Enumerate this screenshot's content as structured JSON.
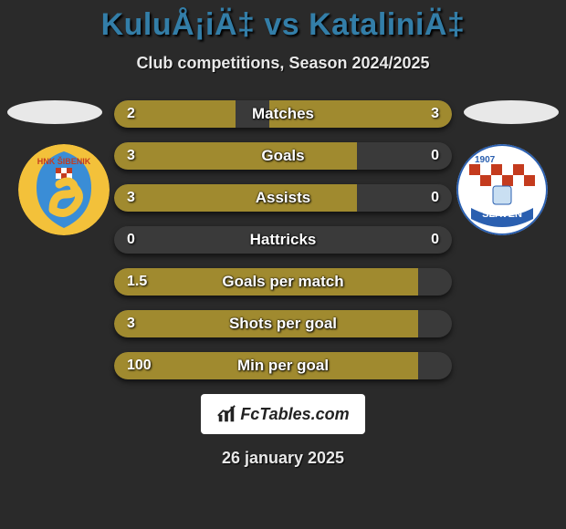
{
  "header": {
    "title": "KuluÅ¡iÄ‡ vs KataliniÄ‡",
    "title_color": "#337ea8",
    "subtitle": "Club competitions, Season 2024/2025"
  },
  "clubs": {
    "left": {
      "name": "HNK Šibenik",
      "badge_bg": "#f3c13a",
      "badge_text_color": "#1e5fa8"
    },
    "right": {
      "name": "Slaven",
      "badge_bg": "#ffffff",
      "badge_text_color": "#2a5fb0"
    }
  },
  "bars": {
    "track_color": "#3a3a3a",
    "left_fill_color": "#a08a2f",
    "right_fill_color": "#a08a2f",
    "rows": [
      {
        "label": "Matches",
        "left_val": "2",
        "right_val": "3",
        "left_pct": 36,
        "right_pct": 54
      },
      {
        "label": "Goals",
        "left_val": "3",
        "right_val": "0",
        "left_pct": 72,
        "right_pct": 0
      },
      {
        "label": "Assists",
        "left_val": "3",
        "right_val": "0",
        "left_pct": 72,
        "right_pct": 0
      },
      {
        "label": "Hattricks",
        "left_val": "0",
        "right_val": "0",
        "left_pct": 0,
        "right_pct": 0
      },
      {
        "label": "Goals per match",
        "left_val": "1.5",
        "right_val": "",
        "left_pct": 90,
        "right_pct": 0
      },
      {
        "label": "Shots per goal",
        "left_val": "3",
        "right_val": "",
        "left_pct": 90,
        "right_pct": 0
      },
      {
        "label": "Min per goal",
        "left_val": "100",
        "right_val": "",
        "left_pct": 90,
        "right_pct": 0
      }
    ]
  },
  "footer": {
    "logo_text": "FcTables.com",
    "date": "26 january 2025"
  },
  "background_color": "#2a2a2a"
}
